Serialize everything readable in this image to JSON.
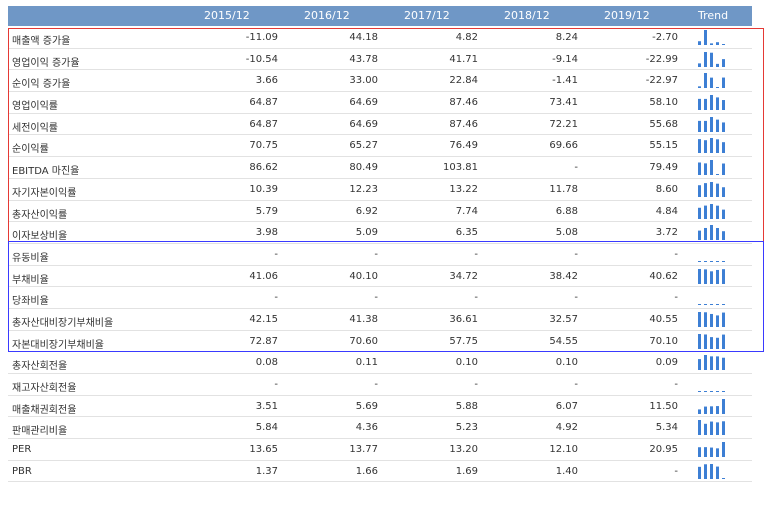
{
  "header": {
    "years": [
      "2015/12",
      "2016/12",
      "2017/12",
      "2018/12",
      "2019/12"
    ],
    "trend_label": "Trend"
  },
  "rows": [
    {
      "label": "매출액 증가율",
      "values": [
        "-11.09",
        "44.18",
        "4.82",
        "8.24",
        "-2.70"
      ]
    },
    {
      "label": "영업이익 증가율",
      "values": [
        "-10.54",
        "43.78",
        "41.71",
        "-9.14",
        "-22.99"
      ]
    },
    {
      "label": "순이익 증가율",
      "values": [
        "3.66",
        "33.00",
        "22.84",
        "-1.41",
        "-22.97"
      ]
    },
    {
      "label": "영업이익률",
      "values": [
        "64.87",
        "64.69",
        "87.46",
        "73.41",
        "58.10"
      ]
    },
    {
      "label": "세전이익률",
      "values": [
        "64.87",
        "64.69",
        "87.46",
        "72.21",
        "55.68"
      ]
    },
    {
      "label": "순이익률",
      "values": [
        "70.75",
        "65.27",
        "76.49",
        "69.66",
        "55.15"
      ]
    },
    {
      "label": "EBITDA 마진율",
      "values": [
        "86.62",
        "80.49",
        "103.81",
        "-",
        "79.49"
      ]
    },
    {
      "label": "자기자본이익률",
      "values": [
        "10.39",
        "12.23",
        "13.22",
        "11.78",
        "8.60"
      ]
    },
    {
      "label": "총자산이익률",
      "values": [
        "5.79",
        "6.92",
        "7.74",
        "6.88",
        "4.84"
      ]
    },
    {
      "label": "이자보상비율",
      "values": [
        "3.98",
        "5.09",
        "6.35",
        "5.08",
        "3.72"
      ]
    },
    {
      "label": "유동비율",
      "values": [
        "-",
        "-",
        "-",
        "-",
        "-"
      ]
    },
    {
      "label": "부채비율",
      "values": [
        "41.06",
        "40.10",
        "34.72",
        "38.42",
        "40.62"
      ]
    },
    {
      "label": "당좌비율",
      "values": [
        "-",
        "-",
        "-",
        "-",
        "-"
      ]
    },
    {
      "label": "총자산대비장기부채비율",
      "values": [
        "42.15",
        "41.38",
        "36.61",
        "32.57",
        "40.55"
      ]
    },
    {
      "label": "자본대비장기부채비율",
      "values": [
        "72.87",
        "70.60",
        "57.75",
        "54.55",
        "70.10"
      ]
    },
    {
      "label": "총자산회전율",
      "values": [
        "0.08",
        "0.11",
        "0.10",
        "0.10",
        "0.09"
      ]
    },
    {
      "label": "재고자산회전율",
      "values": [
        "-",
        "-",
        "-",
        "-",
        "-"
      ]
    },
    {
      "label": "매출채권회전율",
      "values": [
        "3.51",
        "5.69",
        "5.88",
        "6.07",
        "11.50"
      ]
    },
    {
      "label": "판매관리비율",
      "values": [
        "5.84",
        "4.36",
        "5.23",
        "4.92",
        "5.34"
      ]
    },
    {
      "label": "PER",
      "values": [
        "13.65",
        "13.77",
        "13.20",
        "12.10",
        "20.95"
      ]
    },
    {
      "label": "PBR",
      "values": [
        "1.37",
        "1.66",
        "1.69",
        "1.40",
        "-"
      ]
    }
  ],
  "colors": {
    "header_bg": "#6f97c6",
    "bar": "#3d7fd4",
    "profitability_box": "#e53935",
    "stability_box": "#3a3aff"
  }
}
